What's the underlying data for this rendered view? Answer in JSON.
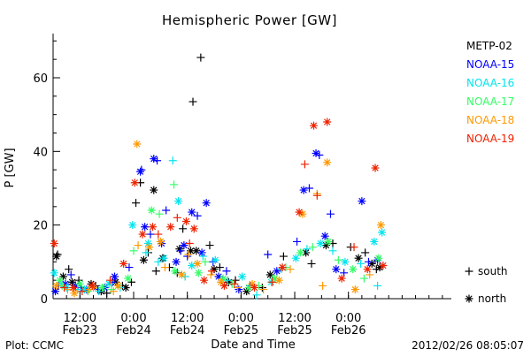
{
  "chart_data": {
    "type": "scatter",
    "title": "Hemispheric Power [GW]",
    "xlabel": "Date and Time",
    "ylabel": "P [GW]",
    "ylim": [
      0,
      72
    ],
    "y_ticks": [
      0,
      20,
      40,
      60
    ],
    "xlim": [
      "2012-02-23 06:00",
      "2012-02-26 23:00"
    ],
    "x_ticks": [
      {
        "time": "2012-02-23 12:00",
        "label1": "12:00",
        "label2": "Feb23"
      },
      {
        "time": "2012-02-24 00:00",
        "label1": "0:00",
        "label2": "Feb24"
      },
      {
        "time": "2012-02-24 12:00",
        "label1": "12:00",
        "label2": "Feb24"
      },
      {
        "time": "2012-02-25 00:00",
        "label1": "0:00",
        "label2": "Feb25"
      },
      {
        "time": "2012-02-25 12:00",
        "label1": "12:00",
        "label2": "Feb25"
      },
      {
        "time": "2012-02-26 00:00",
        "label1": "0:00",
        "label2": "Feb26"
      }
    ],
    "grid": false,
    "legend_position": "right",
    "marker_legend": [
      {
        "marker": "+",
        "label": "south"
      },
      {
        "marker": "*",
        "label": "north"
      }
    ],
    "series": [
      {
        "name": "METP-02",
        "color": "#000000",
        "north": [
          [
            "2012-02-23 06:45",
            11.5
          ],
          [
            "2012-02-23 08:15",
            6.0
          ],
          [
            "2012-02-23 10:15",
            4.5
          ],
          [
            "2012-02-23 14:30",
            4.0
          ],
          [
            "2012-02-23 16:45",
            2.0
          ],
          [
            "2012-02-23 20:00",
            4.5
          ],
          [
            "2012-02-23 22:15",
            3.0
          ],
          [
            "2012-02-24 02:15",
            10.5
          ],
          [
            "2012-02-24 04:30",
            29.5
          ],
          [
            "2012-02-24 06:30",
            11.0
          ],
          [
            "2012-02-24 10:15",
            13.5
          ],
          [
            "2012-02-24 12:45",
            13.0
          ],
          [
            "2012-02-24 14:00",
            13.0
          ],
          [
            "2012-02-24 18:00",
            8.0
          ],
          [
            "2012-02-24 21:15",
            4.5
          ],
          [
            "2012-02-25 01:15",
            2.0
          ],
          [
            "2012-02-25 06:30",
            6.5
          ],
          [
            "2012-02-25 14:30",
            12.5
          ],
          [
            "2012-02-25 19:00",
            14.5
          ],
          [
            "2012-02-26 02:15",
            11.0
          ],
          [
            "2012-02-26 05:15",
            9.5
          ],
          [
            "2012-02-26 07:00",
            8.5
          ]
        ],
        "south": [
          [
            "2012-02-23 07:00",
            12.0
          ],
          [
            "2012-02-23 09:30",
            8.0
          ],
          [
            "2012-02-23 11:45",
            5.0
          ],
          [
            "2012-02-23 15:30",
            3.5
          ],
          [
            "2012-02-23 18:00",
            1.5
          ],
          [
            "2012-02-23 21:30",
            3.5
          ],
          [
            "2012-02-23 23:30",
            4.5
          ],
          [
            "2012-02-24 00:30",
            26.0
          ],
          [
            "2012-02-24 01:30",
            31.5
          ],
          [
            "2012-02-24 03:15",
            12.5
          ],
          [
            "2012-02-24 05:00",
            7.5
          ],
          [
            "2012-02-24 08:00",
            8.5
          ],
          [
            "2012-02-24 09:45",
            7.0
          ],
          [
            "2012-02-24 11:00",
            19.0
          ],
          [
            "2012-02-24 13:15",
            53.5
          ],
          [
            "2012-02-24 15:00",
            65.5
          ],
          [
            "2012-02-24 17:00",
            14.5
          ],
          [
            "2012-02-24 19:15",
            8.5
          ],
          [
            "2012-02-24 22:45",
            5.0
          ],
          [
            "2012-02-25 04:45",
            3.0
          ],
          [
            "2012-02-25 09:30",
            11.5
          ],
          [
            "2012-02-25 15:45",
            9.5
          ],
          [
            "2012-02-25 20:30",
            15.0
          ],
          [
            "2012-02-26 00:30",
            14.0
          ],
          [
            "2012-02-26 03:45",
            12.5
          ],
          [
            "2012-02-26 06:15",
            8.0
          ]
        ]
      },
      {
        "name": "NOAA-15",
        "color": "#0000ff",
        "north": [
          [
            "2012-02-23 06:30",
            2.0
          ],
          [
            "2012-02-23 08:45",
            4.0
          ],
          [
            "2012-02-23 11:00",
            3.5
          ],
          [
            "2012-02-23 13:30",
            2.5
          ],
          [
            "2012-02-23 17:30",
            3.0
          ],
          [
            "2012-02-23 19:45",
            6.0
          ],
          [
            "2012-02-24 01:30",
            34.5
          ],
          [
            "2012-02-24 02:30",
            19.5
          ],
          [
            "2012-02-24 04:30",
            38.0
          ],
          [
            "2012-02-24 06:15",
            15.0
          ],
          [
            "2012-02-24 09:30",
            10.0
          ],
          [
            "2012-02-24 11:15",
            14.5
          ],
          [
            "2012-02-24 13:00",
            23.5
          ],
          [
            "2012-02-24 15:15",
            12.5
          ],
          [
            "2012-02-24 16:15",
            26.0
          ],
          [
            "2012-02-24 19:00",
            6.0
          ],
          [
            "2012-02-24 23:30",
            2.5
          ],
          [
            "2012-02-25 08:00",
            7.5
          ],
          [
            "2012-02-25 14:00",
            29.5
          ],
          [
            "2012-02-25 16:45",
            39.5
          ],
          [
            "2012-02-25 18:45",
            17.0
          ],
          [
            "2012-02-25 21:15",
            8.0
          ],
          [
            "2012-02-26 03:00",
            26.5
          ],
          [
            "2012-02-26 06:30",
            10.5
          ]
        ],
        "south": [
          [
            "2012-02-23 07:15",
            3.5
          ],
          [
            "2012-02-23 10:00",
            6.5
          ],
          [
            "2012-02-23 12:15",
            3.0
          ],
          [
            "2012-02-23 16:00",
            2.5
          ],
          [
            "2012-02-23 19:15",
            4.5
          ],
          [
            "2012-02-23 23:00",
            8.5
          ],
          [
            "2012-02-24 01:45",
            35.0
          ],
          [
            "2012-02-24 03:45",
            17.5
          ],
          [
            "2012-02-24 05:15",
            37.5
          ],
          [
            "2012-02-24 07:15",
            24.0
          ],
          [
            "2012-02-24 10:30",
            13.0
          ],
          [
            "2012-02-24 12:00",
            11.5
          ],
          [
            "2012-02-24 14:15",
            22.5
          ],
          [
            "2012-02-24 17:45",
            10.0
          ],
          [
            "2012-02-24 20:45",
            7.5
          ],
          [
            "2012-02-25 02:00",
            3.5
          ],
          [
            "2012-02-25 06:00",
            12.0
          ],
          [
            "2012-02-25 12:30",
            15.5
          ],
          [
            "2012-02-25 15:15",
            30.0
          ],
          [
            "2012-02-25 17:30",
            39.0
          ],
          [
            "2012-02-25 20:00",
            23.0
          ],
          [
            "2012-02-25 23:00",
            7.0
          ],
          [
            "2012-02-26 04:30",
            10.0
          ]
        ]
      },
      {
        "name": "NOAA-16",
        "color": "#00e5ee",
        "north": [
          [
            "2012-02-23 06:15",
            7.0
          ],
          [
            "2012-02-23 09:00",
            3.0
          ],
          [
            "2012-02-23 13:00",
            2.5
          ],
          [
            "2012-02-23 18:30",
            4.0
          ],
          [
            "2012-02-23 23:45",
            20.0
          ],
          [
            "2012-02-24 03:15",
            15.0
          ],
          [
            "2012-02-24 06:45",
            11.0
          ],
          [
            "2012-02-24 10:00",
            26.5
          ],
          [
            "2012-02-24 13:00",
            9.0
          ],
          [
            "2012-02-24 18:15",
            10.5
          ],
          [
            "2012-02-25 00:15",
            6.0
          ],
          [
            "2012-02-25 06:45",
            4.5
          ],
          [
            "2012-02-25 12:15",
            11.0
          ],
          [
            "2012-02-25 17:45",
            15.0
          ],
          [
            "2012-02-25 23:15",
            10.0
          ],
          [
            "2012-02-26 05:45",
            15.5
          ],
          [
            "2012-02-26 07:30",
            18.0
          ]
        ],
        "south": [
          [
            "2012-02-23 07:45",
            4.0
          ],
          [
            "2012-02-23 11:30",
            2.5
          ],
          [
            "2012-02-23 16:15",
            2.0
          ],
          [
            "2012-02-23 21:00",
            3.0
          ],
          [
            "2012-02-24 02:45",
            12.5
          ],
          [
            "2012-02-24 05:30",
            10.0
          ],
          [
            "2012-02-24 08:45",
            37.5
          ],
          [
            "2012-02-24 11:30",
            6.0
          ],
          [
            "2012-02-24 15:30",
            11.5
          ],
          [
            "2012-02-24 21:00",
            5.0
          ],
          [
            "2012-02-25 03:30",
            1.0
          ],
          [
            "2012-02-25 09:00",
            8.0
          ],
          [
            "2012-02-25 14:45",
            13.5
          ],
          [
            "2012-02-25 20:30",
            13.0
          ],
          [
            "2012-02-26 02:45",
            9.5
          ],
          [
            "2012-02-26 06:30",
            3.5
          ]
        ]
      },
      {
        "name": "NOAA-17",
        "color": "#33ff66",
        "north": [
          [
            "2012-02-23 07:30",
            5.0
          ],
          [
            "2012-02-23 12:00",
            4.0
          ],
          [
            "2012-02-23 17:00",
            3.0
          ],
          [
            "2012-02-23 22:45",
            5.5
          ],
          [
            "2012-02-24 04:00",
            24.0
          ],
          [
            "2012-02-24 09:15",
            7.5
          ],
          [
            "2012-02-24 14:30",
            7.0
          ],
          [
            "2012-02-24 20:00",
            5.5
          ],
          [
            "2012-02-25 01:45",
            3.0
          ],
          [
            "2012-02-25 07:30",
            5.5
          ],
          [
            "2012-02-25 13:15",
            12.5
          ],
          [
            "2012-02-25 19:30",
            15.5
          ],
          [
            "2012-02-26 01:00",
            8.0
          ],
          [
            "2012-02-26 06:45",
            11.0
          ]
        ],
        "south": [
          [
            "2012-02-23 08:00",
            3.5
          ],
          [
            "2012-02-23 13:45",
            2.0
          ],
          [
            "2012-02-23 19:00",
            2.5
          ],
          [
            "2012-02-24 00:00",
            13.0
          ],
          [
            "2012-02-24 05:45",
            23.0
          ],
          [
            "2012-02-24 09:00",
            31.0
          ],
          [
            "2012-02-24 16:00",
            10.0
          ],
          [
            "2012-02-24 22:00",
            4.0
          ],
          [
            "2012-02-25 04:00",
            3.5
          ],
          [
            "2012-02-25 10:00",
            8.5
          ],
          [
            "2012-02-25 16:00",
            14.0
          ],
          [
            "2012-02-25 21:45",
            10.5
          ],
          [
            "2012-02-26 03:30",
            5.5
          ]
        ]
      },
      {
        "name": "NOAA-18",
        "color": "#ff9900",
        "north": [
          [
            "2012-02-23 06:45",
            3.5
          ],
          [
            "2012-02-23 10:45",
            1.5
          ],
          [
            "2012-02-23 15:00",
            3.0
          ],
          [
            "2012-02-23 20:30",
            3.5
          ],
          [
            "2012-02-24 00:45",
            42.0
          ],
          [
            "2012-02-24 03:30",
            14.0
          ],
          [
            "2012-02-24 06:00",
            15.5
          ],
          [
            "2012-02-24 10:45",
            6.5
          ],
          [
            "2012-02-24 14:15",
            9.5
          ],
          [
            "2012-02-24 19:30",
            4.5
          ],
          [
            "2012-02-25 02:30",
            4.0
          ],
          [
            "2012-02-25 08:30",
            5.0
          ],
          [
            "2012-02-25 13:45",
            23.0
          ],
          [
            "2012-02-25 19:15",
            37.0
          ],
          [
            "2012-02-26 01:30",
            2.5
          ],
          [
            "2012-02-26 07:15",
            20.0
          ]
        ],
        "south": [
          [
            "2012-02-23 09:15",
            2.5
          ],
          [
            "2012-02-23 14:00",
            2.5
          ],
          [
            "2012-02-23 19:30",
            2.0
          ],
          [
            "2012-02-24 01:00",
            14.5
          ],
          [
            "2012-02-24 07:00",
            8.5
          ],
          [
            "2012-02-24 12:15",
            12.0
          ],
          [
            "2012-02-24 17:15",
            6.5
          ],
          [
            "2012-02-24 23:15",
            3.0
          ],
          [
            "2012-02-25 05:00",
            2.5
          ],
          [
            "2012-02-25 11:00",
            8.0
          ],
          [
            "2012-02-25 17:00",
            28.5
          ],
          [
            "2012-02-25 18:15",
            3.5
          ],
          [
            "2012-02-26 04:45",
            6.5
          ]
        ]
      },
      {
        "name": "NOAA-19",
        "color": "#ee2200",
        "north": [
          [
            "2012-02-23 06:15",
            15.0
          ],
          [
            "2012-02-23 10:30",
            3.0
          ],
          [
            "2012-02-23 14:45",
            3.5
          ],
          [
            "2012-02-23 21:45",
            9.5
          ],
          [
            "2012-02-24 00:15",
            31.5
          ],
          [
            "2012-02-24 02:00",
            17.5
          ],
          [
            "2012-02-24 04:15",
            19.5
          ],
          [
            "2012-02-24 08:15",
            19.5
          ],
          [
            "2012-02-24 11:45",
            21.0
          ],
          [
            "2012-02-24 13:30",
            19.0
          ],
          [
            "2012-02-24 15:45",
            5.0
          ],
          [
            "2012-02-24 20:15",
            3.5
          ],
          [
            "2012-02-25 03:00",
            3.0
          ],
          [
            "2012-02-25 09:15",
            8.5
          ],
          [
            "2012-02-25 13:00",
            23.5
          ],
          [
            "2012-02-25 16:15",
            47.0
          ],
          [
            "2012-02-25 19:15",
            48.0
          ],
          [
            "2012-02-25 22:30",
            5.5
          ],
          [
            "2012-02-26 04:15",
            8.0
          ],
          [
            "2012-02-26 06:00",
            35.5
          ],
          [
            "2012-02-26 07:45",
            9.0
          ]
        ],
        "south": [
          [
            "2012-02-23 08:30",
            3.0
          ],
          [
            "2012-02-23 12:30",
            2.0
          ],
          [
            "2012-02-23 18:45",
            5.0
          ],
          [
            "2012-02-24 05:30",
            17.5
          ],
          [
            "2012-02-24 09:45",
            22.0
          ],
          [
            "2012-02-24 12:30",
            15.0
          ],
          [
            "2012-02-24 17:30",
            7.5
          ],
          [
            "2012-02-24 22:30",
            4.0
          ],
          [
            "2012-02-25 07:00",
            4.5
          ],
          [
            "2012-02-25 14:15",
            36.5
          ],
          [
            "2012-02-25 17:00",
            28.0
          ],
          [
            "2012-02-26 01:15",
            14.0
          ]
        ]
      }
    ]
  },
  "footer": {
    "left": "Plot: CCMC",
    "right": "2012/02/26 08:05:07"
  }
}
